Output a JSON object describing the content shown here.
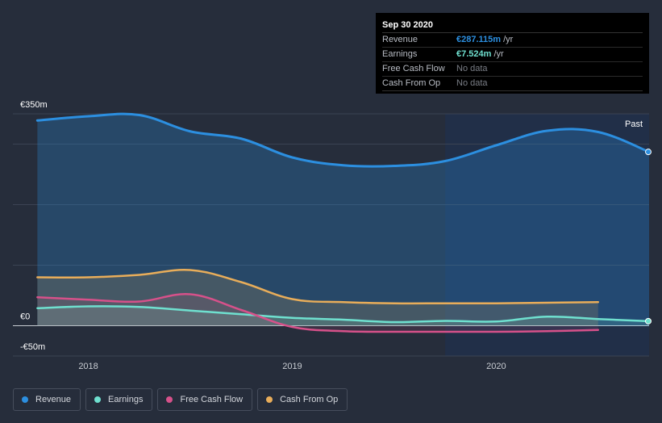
{
  "tooltip": {
    "date": "Sep 30 2020",
    "rows": [
      {
        "label": "Revenue",
        "value": "€287.115m",
        "unit": "/yr",
        "color": "#2c8fe0"
      },
      {
        "label": "Earnings",
        "value": "€7.524m",
        "unit": "/yr",
        "color": "#6fe0cf"
      },
      {
        "label": "Free Cash Flow",
        "value": "No data",
        "unit": "",
        "color": ""
      },
      {
        "label": "Cash From Op",
        "value": "No data",
        "unit": "",
        "color": ""
      }
    ]
  },
  "past_label": "Past",
  "legend": [
    {
      "label": "Revenue",
      "color": "#2c8fe0"
    },
    {
      "label": "Earnings",
      "color": "#6fe0cf"
    },
    {
      "label": "Free Cash Flow",
      "color": "#d6518a"
    },
    {
      "label": "Cash From Op",
      "color": "#e8ad5a"
    }
  ],
  "chart_data": {
    "type": "area",
    "y_tick_labels": [
      "€350m",
      "€0",
      "-€50m"
    ],
    "ylim": [
      -50,
      350
    ],
    "x_tick_labels": [
      "2018",
      "2019",
      "2020"
    ],
    "x_ticks": [
      2018.0,
      2019.0,
      2020.0
    ],
    "xlim": [
      2017.63,
      2020.75
    ],
    "highlight_from_x": 2019.75,
    "series": [
      {
        "name": "Revenue",
        "color": "#2c8fe0",
        "x": [
          2017.75,
          2018.0,
          2018.25,
          2018.5,
          2018.75,
          2019.0,
          2019.25,
          2019.5,
          2019.75,
          2020.0,
          2020.25,
          2020.5,
          2020.75
        ],
        "y": [
          339,
          346,
          348,
          321,
          309,
          278,
          265,
          264,
          272,
          298,
          322,
          320,
          287.115
        ]
      },
      {
        "name": "Earnings",
        "color": "#6fe0cf",
        "x": [
          2017.75,
          2018.0,
          2018.25,
          2018.5,
          2018.75,
          2019.0,
          2019.25,
          2019.5,
          2019.75,
          2020.0,
          2020.25,
          2020.5,
          2020.75
        ],
        "y": [
          29,
          32,
          31,
          25,
          19,
          13,
          10,
          6,
          8,
          7,
          15,
          11,
          7.524
        ]
      },
      {
        "name": "Free Cash Flow",
        "color": "#d6518a",
        "x": [
          2017.75,
          2018.0,
          2018.25,
          2018.5,
          2018.75,
          2019.0,
          2019.25,
          2019.5,
          2019.75,
          2020.0,
          2020.25,
          2020.5
        ],
        "y": [
          47,
          43,
          40,
          52,
          26,
          -2,
          -9,
          -10,
          -10,
          -10,
          -9,
          -7
        ]
      },
      {
        "name": "Cash From Op",
        "color": "#e8ad5a",
        "x": [
          2017.75,
          2018.0,
          2018.25,
          2018.5,
          2018.75,
          2019.0,
          2019.25,
          2019.5,
          2019.75,
          2020.0,
          2020.25,
          2020.5
        ],
        "y": [
          80,
          80,
          84,
          92,
          72,
          44,
          39,
          37,
          37,
          37,
          38,
          39
        ]
      }
    ]
  }
}
